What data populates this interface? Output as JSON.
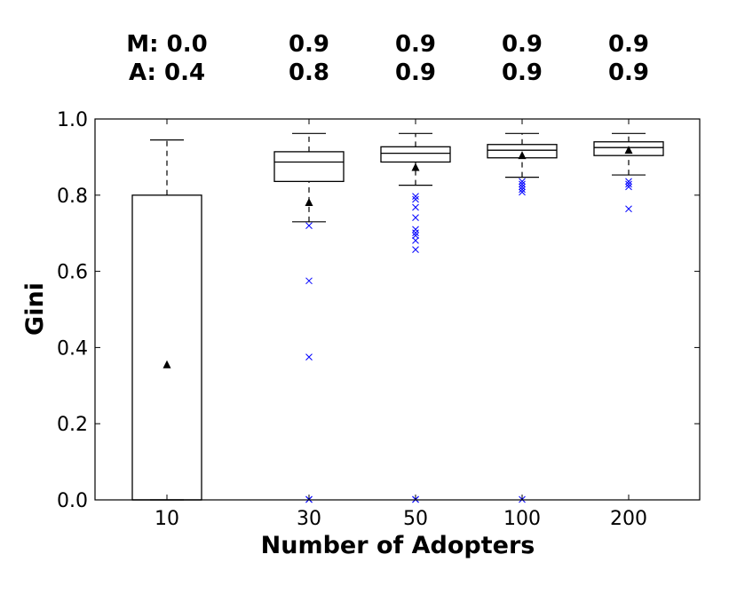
{
  "chart_data": {
    "type": "box",
    "title": "",
    "xlabel": "Number of Adopters",
    "ylabel": "Gini",
    "ylim": [
      0.0,
      1.0
    ],
    "yticks": [
      0.0,
      0.2,
      0.4,
      0.6,
      0.8,
      1.0
    ],
    "ytick_labels": [
      "0.0",
      "0.2",
      "0.4",
      "0.6",
      "0.8",
      "1.0"
    ],
    "grid": false,
    "categories": [
      "10",
      "30",
      "50",
      "100",
      "200"
    ],
    "annotation_rows": [
      {
        "prefix": "M:",
        "values": [
          "0.0",
          "0.9",
          "0.9",
          "0.9",
          "0.9"
        ]
      },
      {
        "prefix": "A:",
        "values": [
          "0.4",
          "0.8",
          "0.9",
          "0.9",
          "0.9"
        ]
      }
    ],
    "boxes": [
      {
        "category": "10",
        "whisker_low": 0.0,
        "q1": 0.0,
        "median": 0.0,
        "q3": 0.8,
        "whisker_high": 0.945,
        "mean": 0.355,
        "outliers": []
      },
      {
        "category": "30",
        "whisker_low": 0.73,
        "q1": 0.836,
        "median": 0.887,
        "q3": 0.914,
        "whisker_high": 0.962,
        "mean": 0.781,
        "outliers": [
          0.72,
          0.575,
          0.375,
          0.0,
          0.0
        ]
      },
      {
        "category": "50",
        "whisker_low": 0.826,
        "q1": 0.887,
        "median": 0.91,
        "q3": 0.927,
        "whisker_high": 0.962,
        "mean": 0.873,
        "outliers": [
          0.797,
          0.789,
          0.768,
          0.741,
          0.71,
          0.701,
          0.694,
          0.681,
          0.657,
          0.0,
          0.0
        ]
      },
      {
        "category": "100",
        "whisker_low": 0.847,
        "q1": 0.898,
        "median": 0.918,
        "q3": 0.933,
        "whisker_high": 0.962,
        "mean": 0.904,
        "outliers": [
          0.836,
          0.829,
          0.822,
          0.815,
          0.808,
          0.0
        ]
      },
      {
        "category": "200",
        "whisker_low": 0.853,
        "q1": 0.904,
        "median": 0.925,
        "q3": 0.94,
        "whisker_high": 0.962,
        "mean": 0.918,
        "outliers": [
          0.836,
          0.829,
          0.822,
          0.764
        ]
      }
    ],
    "colors": {
      "box": "#000000",
      "outlier": "#0000ff",
      "mean": "#000000"
    }
  }
}
